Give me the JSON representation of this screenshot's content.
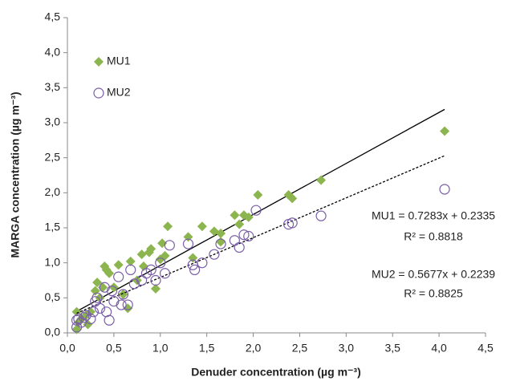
{
  "chart_data": {
    "type": "scatter",
    "x_label": "Denuder concentration (µg m⁻³)",
    "y_label": "MARGA concentration (µg m⁻³)",
    "xlim": [
      0,
      4.5
    ],
    "ylim": [
      0,
      4.5
    ],
    "xticks": [
      {
        "value": 0,
        "label": "0,0"
      },
      {
        "value": 0.5,
        "label": "0,5"
      },
      {
        "value": 1,
        "label": "1,0"
      },
      {
        "value": 1.5,
        "label": "1,5"
      },
      {
        "value": 2,
        "label": "2,0"
      },
      {
        "value": 2.5,
        "label": "2,5"
      },
      {
        "value": 3,
        "label": "3,0"
      },
      {
        "value": 3.5,
        "label": "3,5"
      },
      {
        "value": 4,
        "label": "4,0"
      },
      {
        "value": 4.5,
        "label": "4,5"
      }
    ],
    "yticks": [
      {
        "value": 0,
        "label": "0,0"
      },
      {
        "value": 0.5,
        "label": "0,5"
      },
      {
        "value": 1,
        "label": "1,0"
      },
      {
        "value": 1.5,
        "label": "1,5"
      },
      {
        "value": 2,
        "label": "2,0"
      },
      {
        "value": 2.5,
        "label": "2,5"
      },
      {
        "value": 3,
        "label": "3,0"
      },
      {
        "value": 3.5,
        "label": "3,5"
      },
      {
        "value": 4,
        "label": "4,0"
      },
      {
        "value": 4.5,
        "label": "4,5"
      }
    ],
    "legend": "upper left",
    "series": [
      {
        "name": "MU1",
        "color": "#8db54f",
        "marker": "diamond",
        "x": [
          0.1,
          0.1,
          0.12,
          0.15,
          0.2,
          0.22,
          0.25,
          0.3,
          0.32,
          0.35,
          0.38,
          0.4,
          0.42,
          0.45,
          0.5,
          0.55,
          0.6,
          0.65,
          0.68,
          0.75,
          0.8,
          0.82,
          0.88,
          0.9,
          0.95,
          1.0,
          1.02,
          1.05,
          1.08,
          1.3,
          1.35,
          1.45,
          1.58,
          1.65,
          1.65,
          1.8,
          1.85,
          1.9,
          1.95,
          2.05,
          2.38,
          2.42,
          2.73,
          4.06
        ],
        "values": [
          0.05,
          0.3,
          0.15,
          0.2,
          0.25,
          0.12,
          0.3,
          0.6,
          0.72,
          0.5,
          0.65,
          0.95,
          0.9,
          0.85,
          0.65,
          0.97,
          0.55,
          0.35,
          1.02,
          0.75,
          1.12,
          0.95,
          1.15,
          1.2,
          0.63,
          1.05,
          1.28,
          1.1,
          1.52,
          1.37,
          1.07,
          1.52,
          1.45,
          1.42,
          1.3,
          1.68,
          1.55,
          1.68,
          1.65,
          1.97,
          1.97,
          1.92,
          2.18,
          2.88
        ],
        "trendline": {
          "slope": 0.7283,
          "intercept": 0.2335,
          "dashed": false,
          "label": "MU1 = 0.7283x + 0.2335",
          "r2_label": "R² = 0.8818"
        }
      },
      {
        "name": "MU2",
        "color": "#7a5ea8",
        "marker": "circle",
        "x": [
          0.1,
          0.1,
          0.12,
          0.15,
          0.18,
          0.2,
          0.25,
          0.28,
          0.3,
          0.32,
          0.35,
          0.4,
          0.42,
          0.45,
          0.48,
          0.5,
          0.55,
          0.58,
          0.6,
          0.65,
          0.68,
          0.72,
          0.8,
          0.85,
          0.9,
          0.95,
          1.0,
          1.05,
          1.1,
          1.3,
          1.35,
          1.37,
          1.45,
          1.58,
          1.65,
          1.8,
          1.85,
          1.9,
          1.95,
          2.03,
          2.38,
          2.42,
          2.73,
          4.06
        ],
        "values": [
          0.08,
          0.18,
          0.2,
          0.15,
          0.22,
          0.25,
          0.2,
          0.3,
          0.45,
          0.5,
          0.35,
          0.65,
          0.3,
          0.18,
          0.6,
          0.45,
          0.8,
          0.4,
          0.55,
          0.4,
          0.9,
          0.7,
          0.75,
          0.85,
          0.9,
          0.75,
          1.0,
          0.85,
          1.25,
          1.27,
          0.97,
          0.9,
          1.0,
          1.12,
          1.27,
          1.32,
          1.22,
          1.4,
          1.38,
          1.75,
          1.55,
          1.57,
          1.67,
          2.05
        ],
        "trendline": {
          "slope": 0.5677,
          "intercept": 0.2239,
          "dashed": true,
          "label": "MU2 = 0.5677x + 0.2239",
          "r2_label": "R² = 0.8825"
        }
      }
    ]
  }
}
